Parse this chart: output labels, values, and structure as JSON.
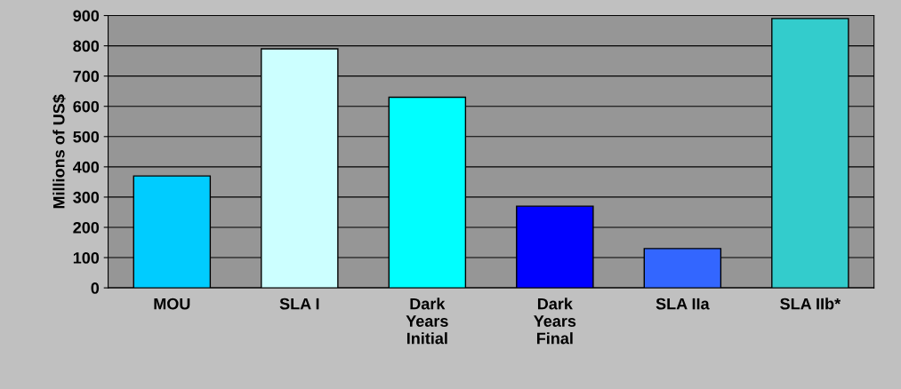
{
  "chart_data": {
    "type": "bar",
    "ylabel": "Millions of US$",
    "categories": [
      "MOU",
      "SLA I",
      "Dark\nYears\nInitial",
      "Dark\nYears\nFinal",
      "SLA IIa",
      "SLA IIb*"
    ],
    "values": [
      370,
      790,
      630,
      270,
      130,
      890
    ],
    "colors": [
      "#00ccff",
      "#ccffff",
      "#00ffff",
      "#0000ff",
      "#3366ff",
      "#33cccc"
    ],
    "ylim": [
      0,
      900
    ],
    "yticks": [
      0,
      100,
      200,
      300,
      400,
      500,
      600,
      700,
      800,
      900
    ],
    "grid": "y"
  }
}
